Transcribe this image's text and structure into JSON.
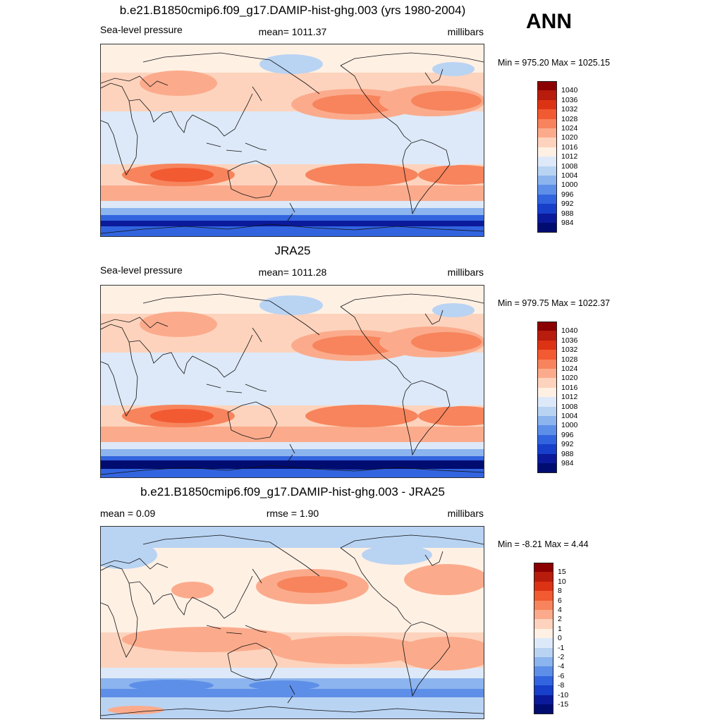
{
  "season": "ANN",
  "panels": [
    {
      "title": "b.e21.B1850cmip6.f09_g17.DAMIP-hist-ghg.003 (yrs 1980-2004)",
      "left_label": "Sea-level pressure",
      "center_label": "mean= 1011.37",
      "right_label": "millibars",
      "minmax": "Min = 975.20 Max = 1025.15"
    },
    {
      "title": "JRA25",
      "left_label": "Sea-level pressure",
      "center_label": "mean= 1011.28",
      "right_label": "millibars",
      "minmax": "Min = 979.75 Max = 1022.37"
    },
    {
      "title": "b.e21.B1850cmip6.f09_g17.DAMIP-hist-ghg.003 - JRA25",
      "left_label": "mean =   0.09",
      "center_label": "rmse =   1.90",
      "right_label": "millibars",
      "minmax": "Min =  -8.21 Max =   4.44"
    }
  ],
  "chart_data": [
    {
      "type": "heatmap",
      "title": "b.e21.B1850cmip6.f09_g17.DAMIP-hist-ghg.003 (yrs 1980-2004)",
      "variable": "Sea-level pressure",
      "units": "millibars",
      "mean": 1011.37,
      "min": 975.2,
      "max": 1025.15,
      "levels": [
        1040,
        1036,
        1032,
        1028,
        1024,
        1020,
        1016,
        1012,
        1008,
        1004,
        1000,
        996,
        992,
        988,
        984
      ],
      "colors": [
        "#8b0000",
        "#b71c0c",
        "#dc3315",
        "#f25a32",
        "#f7845c",
        "#fbab8c",
        "#fdd3bd",
        "#fff0e4",
        "#dde9f8",
        "#b9d3f3",
        "#8cb4ee",
        "#5e8fe8",
        "#3264df",
        "#173fc9",
        "#0a1a9a",
        "#000c70"
      ]
    },
    {
      "type": "heatmap",
      "title": "JRA25",
      "variable": "Sea-level pressure",
      "units": "millibars",
      "mean": 1011.28,
      "min": 979.75,
      "max": 1022.37,
      "levels": [
        1040,
        1036,
        1032,
        1028,
        1024,
        1020,
        1016,
        1012,
        1008,
        1004,
        1000,
        996,
        992,
        988,
        984
      ],
      "colors": [
        "#8b0000",
        "#b71c0c",
        "#dc3315",
        "#f25a32",
        "#f7845c",
        "#fbab8c",
        "#fdd3bd",
        "#fff0e4",
        "#dde9f8",
        "#b9d3f3",
        "#8cb4ee",
        "#5e8fe8",
        "#3264df",
        "#173fc9",
        "#0a1a9a",
        "#000c70"
      ]
    },
    {
      "type": "heatmap",
      "title": "b.e21.B1850cmip6.f09_g17.DAMIP-hist-ghg.003 - JRA25",
      "units": "millibars",
      "mean": 0.09,
      "rmse": 1.9,
      "min": -8.21,
      "max": 4.44,
      "levels": [
        15,
        10,
        8,
        6,
        4,
        2,
        1,
        0,
        -1,
        -2,
        -4,
        -6,
        -8,
        -10,
        -15
      ],
      "colors": [
        "#8b0000",
        "#b71c0c",
        "#dc3315",
        "#f25a32",
        "#f7845c",
        "#fbab8c",
        "#fdd3bd",
        "#fff0e4",
        "#dde9f8",
        "#b9d3f3",
        "#8cb4ee",
        "#5e8fe8",
        "#3264df",
        "#173fc9",
        "#0a1a9a",
        "#000c70"
      ]
    }
  ]
}
